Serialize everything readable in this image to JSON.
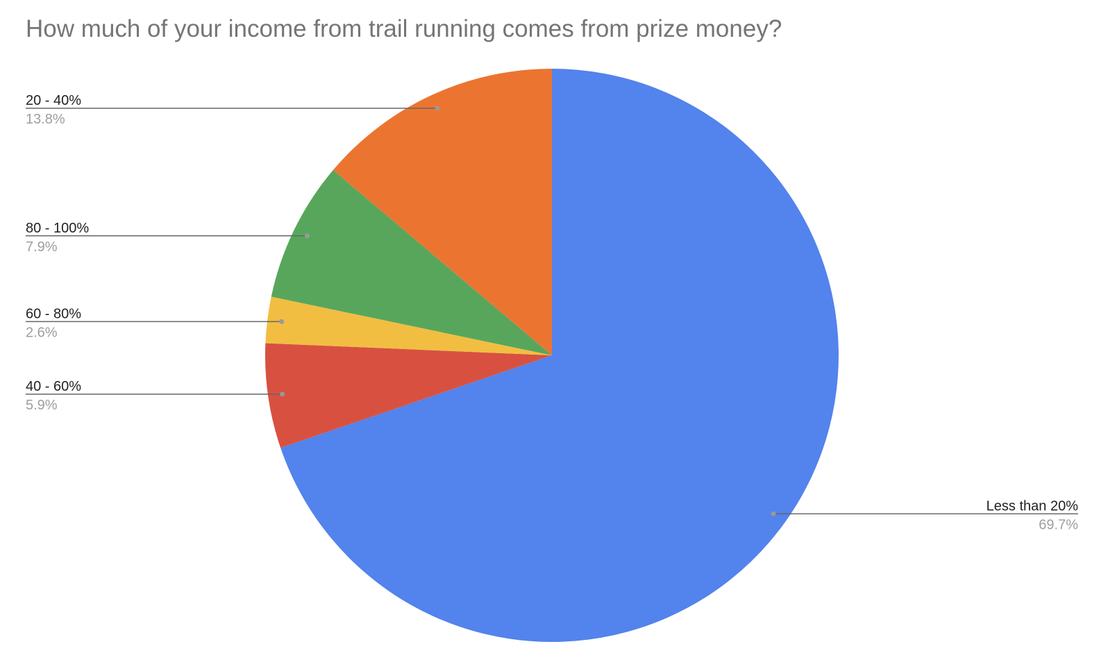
{
  "chart_data": {
    "type": "pie",
    "title": "How much of your income from trail running comes from prize money?",
    "start_angle": "top, clockwise",
    "slices": [
      {
        "label": "Less than 20%",
        "value": 69.7,
        "value_label": "69.7%",
        "color": "#5383EC"
      },
      {
        "label": "40 - 60%",
        "value": 5.9,
        "value_label": "5.9%",
        "color": "#D85140"
      },
      {
        "label": "60 - 80%",
        "value": 2.6,
        "value_label": "2.6%",
        "color": "#F1BE42"
      },
      {
        "label": "80 - 100%",
        "value": 7.9,
        "value_label": "7.9%",
        "color": "#58A65C"
      },
      {
        "label": "20 - 40%",
        "value": 13.8,
        "value_label": "13.8%",
        "color": "#EB7530"
      }
    ],
    "legend": "none; labels with leader lines"
  }
}
